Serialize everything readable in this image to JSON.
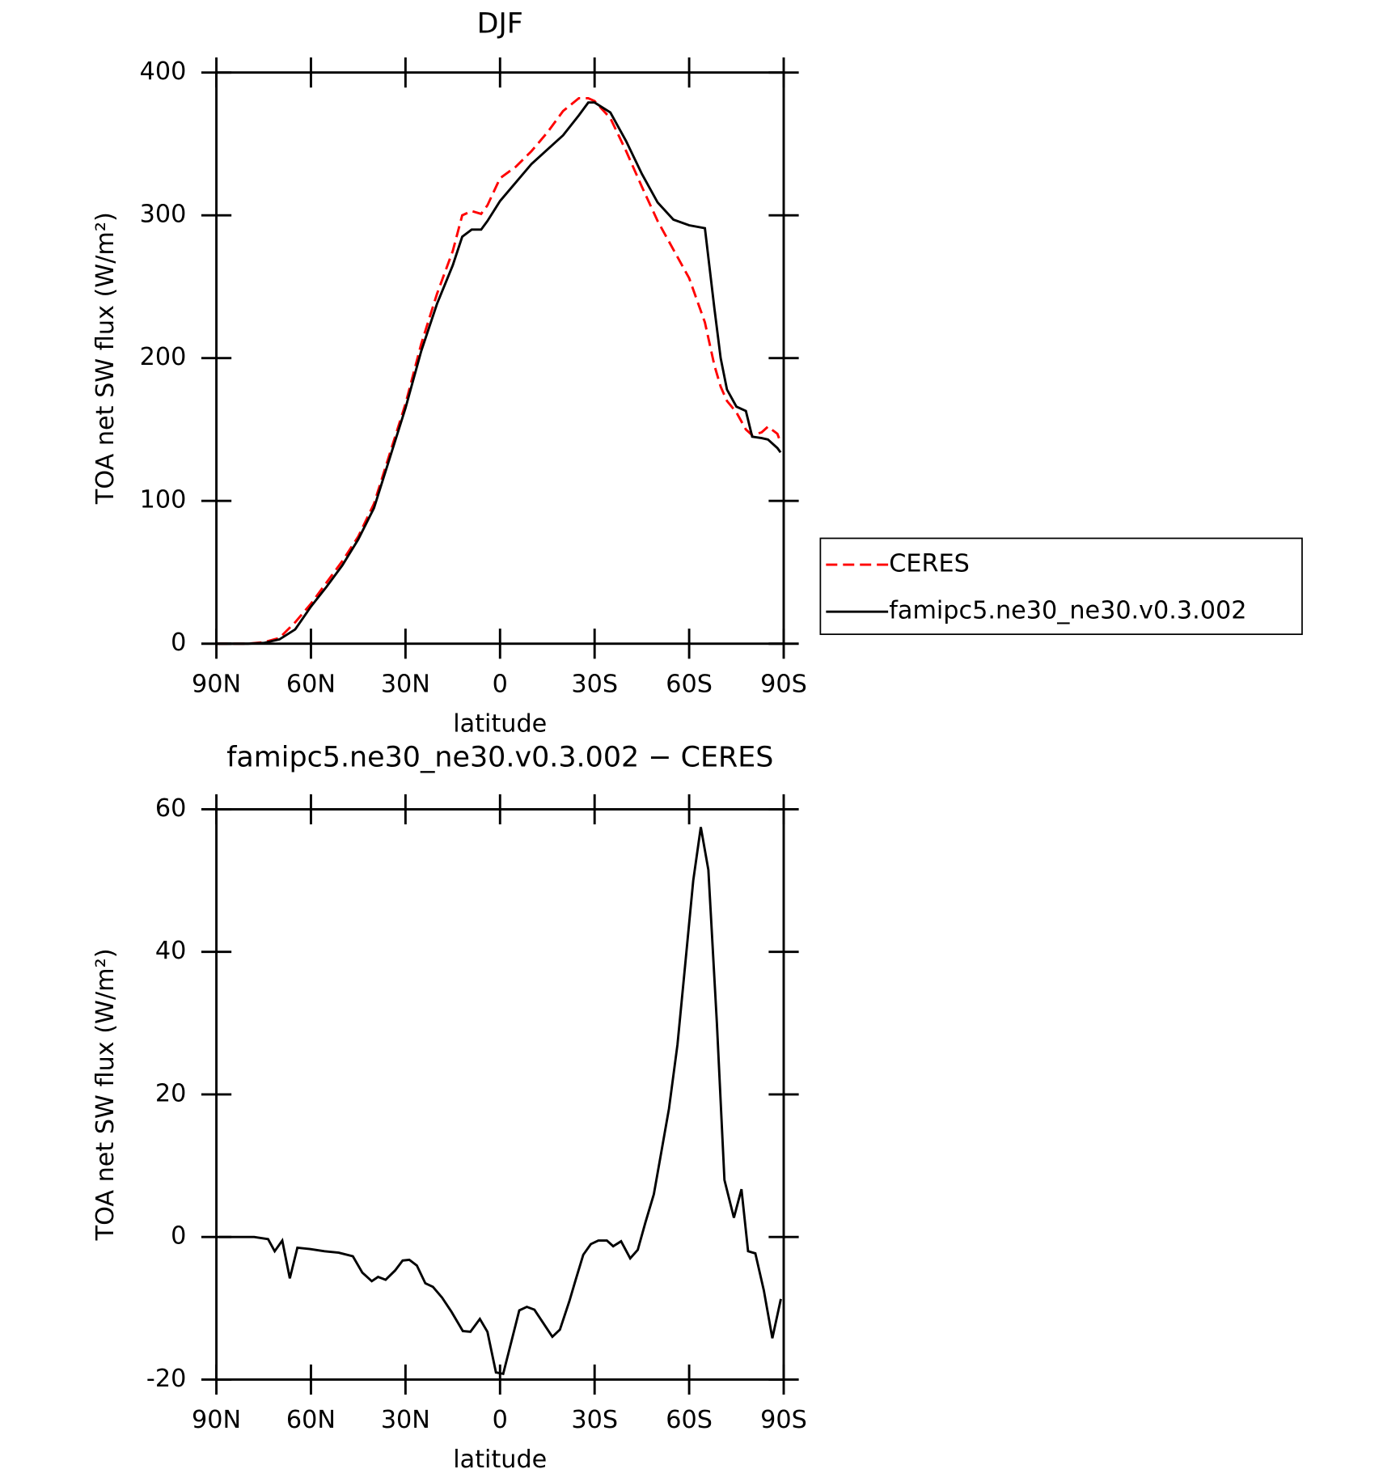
{
  "chart_data": [
    {
      "type": "line",
      "title": "DJF",
      "xlabel": "latitude",
      "ylabel": "TOA net SW flux (W/m²)",
      "x": [
        90,
        85,
        80,
        75,
        70,
        65,
        60,
        55,
        50,
        45,
        40,
        35,
        30,
        25,
        20,
        15,
        12,
        9,
        6,
        4,
        0,
        -5,
        -10,
        -15,
        -20,
        -25,
        -28,
        -30,
        -35,
        -40,
        -45,
        -50,
        -55,
        -60,
        -65,
        -68,
        -70,
        -72,
        -75,
        -78,
        -80,
        -83,
        -85,
        -88,
        -89
      ],
      "series": [
        {
          "name": "CERES",
          "color": "#ff0000",
          "dash": true,
          "values": [
            0,
            0,
            0,
            1,
            4,
            15,
            28,
            43,
            58,
            75,
            98,
            133,
            168,
            210,
            245,
            275,
            300,
            303,
            301,
            307,
            326,
            334,
            345,
            358,
            373,
            382,
            382,
            380,
            368,
            345,
            320,
            296,
            276,
            256,
            225,
            195,
            180,
            170,
            162,
            150,
            146,
            148,
            152,
            147,
            141
          ]
        },
        {
          "name": "famipc5.ne30_ne30.v0.3.002",
          "color": "#000000",
          "dash": false,
          "values": [
            0,
            0,
            0,
            0.5,
            3,
            10,
            26,
            40,
            55,
            73,
            95,
            130,
            165,
            205,
            238,
            265,
            285,
            290,
            290,
            296,
            310,
            323,
            336,
            346,
            356,
            370,
            379,
            379,
            372,
            352,
            329,
            309,
            297,
            293,
            291,
            235,
            200,
            178,
            166,
            163,
            145,
            144,
            143,
            137,
            134
          ]
        }
      ],
      "xlim": [
        90,
        -90
      ],
      "xticks": [
        {
          "value": 90,
          "label": "90N"
        },
        {
          "value": 60,
          "label": "60N"
        },
        {
          "value": 30,
          "label": "30N"
        },
        0,
        {
          "value": -30,
          "label": "30S"
        },
        {
          "value": -60,
          "label": "60S"
        },
        {
          "value": -90,
          "label": "90S"
        }
      ],
      "ylim": [
        0,
        400
      ],
      "yticks": [
        0,
        100,
        200,
        300,
        400
      ],
      "legend": "outside-right"
    },
    {
      "type": "line",
      "title": "famipc5.ne30_ne30.v0.3.002 − CERES",
      "xlabel": "latitude",
      "ylabel": "TOA net SW flux (W/m²)",
      "x": [
        89.1,
        84,
        78,
        73.6,
        71.5,
        69.1,
        66.7,
        64.3,
        60.1,
        55.7,
        51.2,
        46.7,
        43.7,
        40.7,
        38.7,
        36.3,
        33.3,
        30.9,
        28.8,
        26.4,
        23.7,
        21.3,
        18.4,
        15.4,
        11.8,
        9.4,
        6.4,
        4.0,
        1.3,
        -1.0,
        -6.1,
        -8.5,
        -10.9,
        -13.6,
        -16.6,
        -19.0,
        -22.0,
        -24.0,
        -26.4,
        -28.8,
        -31.2,
        -33.9,
        -35.9,
        -38.4,
        -41.3,
        -43.7,
        -46.1,
        -48.8,
        -51.2,
        -53.6,
        -56.3,
        -58.7,
        -61.3,
        -63.7,
        -66.1,
        -68.8,
        -71.2,
        -74.2,
        -76.6,
        -78.7,
        -81.0,
        -83.7,
        -86.4,
        -89.1
      ],
      "series": [
        {
          "name": "famipc5.ne30_ne30.v0.3.002",
          "color": "#000000",
          "dash": false,
          "values": [
            0,
            0,
            0,
            -0.3,
            -2,
            -0.5,
            -5.8,
            -1.5,
            -1.7,
            -2,
            -2.2,
            -2.7,
            -5,
            -6.2,
            -5.6,
            -6,
            -4.7,
            -3.3,
            -3.2,
            -4,
            -6.5,
            -7,
            -8.5,
            -10.5,
            -13.2,
            -13.3,
            -11.5,
            -13.3,
            -19,
            -19.2,
            -10.3,
            -9.8,
            -10.2,
            -12,
            -14,
            -13,
            -9,
            -6,
            -2.5,
            -1,
            -0.5,
            -0.5,
            -1.3,
            -0.6,
            -3,
            -1.8,
            2,
            6,
            12,
            18,
            27,
            38,
            50,
            57.5,
            51.5,
            30,
            8,
            2.7,
            6.7,
            -2,
            -2.3,
            -7.5,
            -14.2,
            -8.7
          ]
        }
      ],
      "xlim": [
        90,
        -90
      ],
      "xticks": [
        {
          "value": 90,
          "label": "90N"
        },
        {
          "value": 60,
          "label": "60N"
        },
        {
          "value": 30,
          "label": "30N"
        },
        0,
        {
          "value": -30,
          "label": "30S"
        },
        {
          "value": -60,
          "label": "60S"
        },
        {
          "value": -90,
          "label": "90S"
        }
      ],
      "ylim": [
        -20,
        60
      ],
      "yticks": [
        -20,
        0,
        20,
        40,
        60
      ]
    }
  ]
}
